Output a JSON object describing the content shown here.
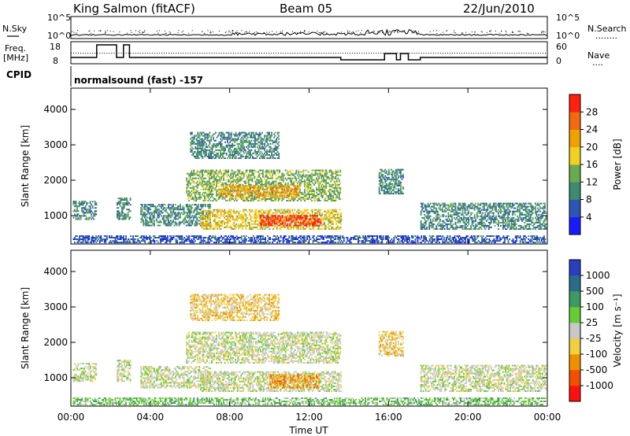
{
  "header": {
    "station": "King Salmon (fitACF)",
    "beam": "Beam 05",
    "date": "22/Jun/2010"
  },
  "status_panels": {
    "nsky_label": "N.Sky",
    "nsearch_label": "N.Search",
    "nsearch_dots": "········",
    "noise_ticks_left": [
      "10^5",
      "10^0"
    ],
    "noise_ticks_right": [
      "10^5",
      "10^0"
    ],
    "freq_label_1": "Freq.",
    "freq_label_2": "[MHz]",
    "freq_ticks": [
      "18",
      "8"
    ],
    "nave_label": "Nave",
    "nave_dots": "····",
    "nave_ticks": [
      "60",
      "0"
    ],
    "cpid_label": "CPID",
    "cpid_text": "normalsound (fast) -157"
  },
  "colors": {
    "axis": "#000000",
    "background": "#ffffff",
    "ground_scatter": "#b0b0b0"
  },
  "chart_data": [
    {
      "type": "heatmap",
      "panel": "power",
      "ylabel": "Slant Range [km]",
      "xlabel": "",
      "ylim": [
        200,
        4600
      ],
      "xlim": [
        0,
        24
      ],
      "yticks": [
        "1000",
        "2000",
        "3000",
        "4000"
      ],
      "colorbar_label": "Power [dB]",
      "colorbar_ticks": [
        "4",
        "8",
        "12",
        "16",
        "20",
        "24",
        "28"
      ],
      "colorbar_colors": [
        "#1a1aff",
        "#2d55b5",
        "#3d8a6e",
        "#6aaa50",
        "#f0d020",
        "#f0a000",
        "#f06a10",
        "#ff2010"
      ],
      "echo_regions": [
        {
          "t0": 0.1,
          "t1": 1.3,
          "r0": 880,
          "r1": 1400,
          "v": 6
        },
        {
          "t0": 2.3,
          "t1": 3.0,
          "r0": 880,
          "r1": 1500,
          "v": 6
        },
        {
          "t0": 3.5,
          "t1": 7.0,
          "r0": 700,
          "r1": 1300,
          "v": 9
        },
        {
          "t0": 6.5,
          "t1": 13.6,
          "r0": 600,
          "r1": 1150,
          "v": 14
        },
        {
          "t0": 9.5,
          "t1": 12.6,
          "r0": 700,
          "r1": 1000,
          "v": 26
        },
        {
          "t0": 5.8,
          "t1": 13.6,
          "r0": 1400,
          "r1": 2300,
          "v": 13
        },
        {
          "t0": 7.5,
          "t1": 11.5,
          "r0": 1500,
          "r1": 1850,
          "v": 19
        },
        {
          "t0": 6.0,
          "t1": 10.5,
          "r0": 2600,
          "r1": 3350,
          "v": 7
        },
        {
          "t0": 15.5,
          "t1": 16.7,
          "r0": 1600,
          "r1": 2300,
          "v": 6
        },
        {
          "t0": 17.6,
          "t1": 23.9,
          "r0": 600,
          "r1": 1350,
          "v": 6
        },
        {
          "t0": 0.1,
          "t1": 23.9,
          "r0": 220,
          "r1": 420,
          "v": 5
        }
      ]
    },
    {
      "type": "heatmap",
      "panel": "velocity",
      "ylabel": "Slant Range [km]",
      "xlabel": "Time UT",
      "ylim": [
        200,
        4600
      ],
      "xlim": [
        0,
        24
      ],
      "xticks": [
        "00:00",
        "04:00",
        "08:00",
        "12:00",
        "16:00",
        "20:00",
        "00:00"
      ],
      "yticks": [
        "1000",
        "2000",
        "3000",
        "4000"
      ],
      "colorbar_label": "Velocity [m s⁻¹]",
      "colorbar_ticks": [
        "1000",
        "500",
        "100",
        "25",
        "-25",
        "-100",
        "-500",
        "-1000"
      ],
      "colorbar_colors": [
        "#2a3fc0",
        "#2d6b8a",
        "#3d9a60",
        "#66cc33",
        "#c8c8c8",
        "#f0d040",
        "#f09000",
        "#f05000",
        "#ff1010"
      ],
      "echo_regions": [
        {
          "t0": 0.1,
          "t1": 1.3,
          "r0": 880,
          "r1": 1400,
          "v": 4
        },
        {
          "t0": 2.3,
          "t1": 3.0,
          "r0": 880,
          "r1": 1500,
          "v": 4
        },
        {
          "t0": 3.5,
          "t1": 7.0,
          "r0": 700,
          "r1": 1300,
          "v": 4
        },
        {
          "t0": 6.5,
          "t1": 13.6,
          "r0": 600,
          "r1": 1150,
          "v": 4
        },
        {
          "t0": 10.0,
          "t1": 12.5,
          "r0": 700,
          "r1": 1100,
          "v": 6
        },
        {
          "t0": 5.8,
          "t1": 13.6,
          "r0": 1400,
          "r1": 2300,
          "v": 4
        },
        {
          "t0": 6.0,
          "t1": 10.5,
          "r0": 2600,
          "r1": 3350,
          "v": 5
        },
        {
          "t0": 15.5,
          "t1": 16.7,
          "r0": 1600,
          "r1": 2300,
          "v": 5
        },
        {
          "t0": 17.6,
          "t1": 23.9,
          "r0": 600,
          "r1": 1350,
          "v": 4
        },
        {
          "t0": 0.1,
          "t1": 23.9,
          "r0": 220,
          "r1": 420,
          "v": 3
        }
      ]
    }
  ]
}
